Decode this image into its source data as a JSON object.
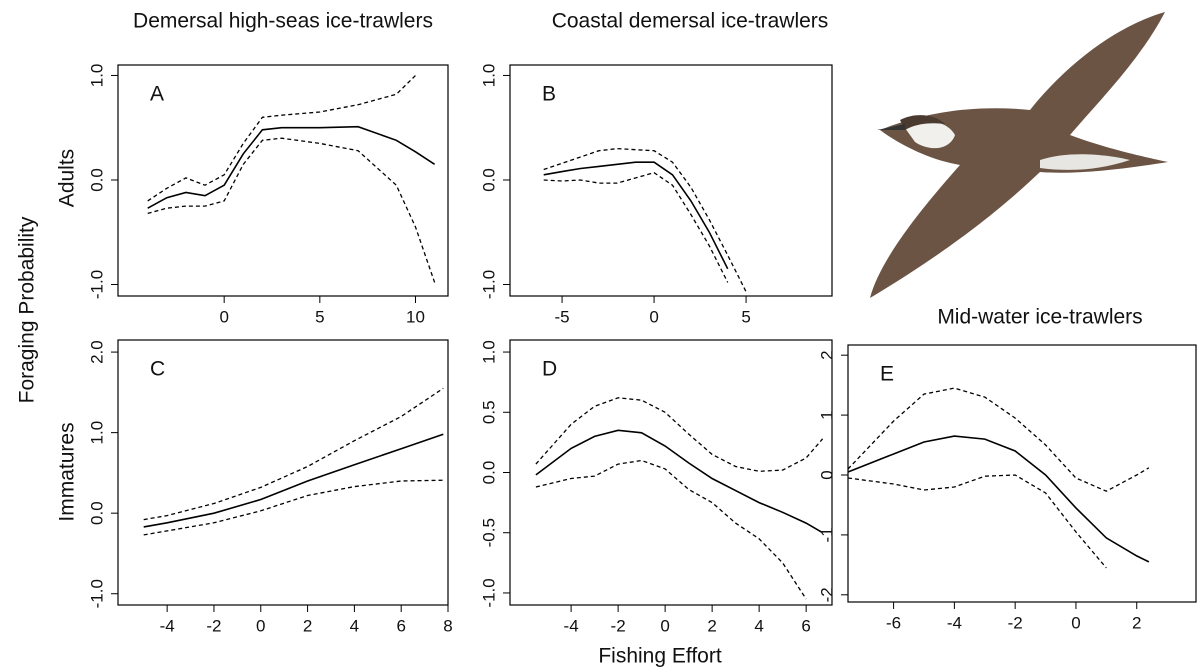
{
  "labels": {
    "y": "Foraging Probability",
    "row_top": "Adults",
    "row_bottom": "Immatures",
    "x": "Fishing Effort"
  },
  "titles": [
    "Demersal high-seas ice-trawlers",
    "Coastal demersal ice-trawlers",
    "Mid-water ice-trawlers"
  ],
  "chart_data": [
    {
      "type": "line",
      "title": "A",
      "x": [
        -4,
        -3,
        -2,
        -1,
        0,
        1,
        2,
        3,
        5,
        7,
        9,
        10,
        11
      ],
      "series": [
        {
          "color": "#000000",
          "dash": false,
          "values": [
            -0.27,
            -0.17,
            -0.12,
            -0.15,
            -0.05,
            0.25,
            0.48,
            0.5,
            0.5,
            0.51,
            0.38,
            0.27,
            0.15
          ]
        },
        {
          "color": "#000000",
          "dash": true,
          "values": [
            -0.2,
            -0.08,
            0.02,
            -0.05,
            0.05,
            0.35,
            0.6,
            0.62,
            0.65,
            0.72,
            0.82,
            1.0,
            null
          ]
        },
        {
          "color": "#000000",
          "dash": true,
          "values": [
            -0.32,
            -0.27,
            -0.25,
            -0.25,
            -0.2,
            0.15,
            0.38,
            0.4,
            0.35,
            0.28,
            -0.05,
            -0.45,
            -0.98
          ]
        }
      ],
      "xlim": [
        -5.55,
        11.7
      ],
      "ylim": [
        -1.11,
        1.1
      ],
      "xticks": [
        0,
        5,
        10
      ],
      "yticks": [
        {
          "value": 1,
          "label": "1.0"
        },
        {
          "value": 0,
          "label": "0.0"
        },
        {
          "value": -1,
          "label": "-1.0"
        }
      ]
    },
    {
      "type": "line",
      "title": "B",
      "x": [
        -6,
        -5,
        -4,
        -3,
        -2,
        -1,
        0,
        1,
        2,
        3,
        4,
        5
      ],
      "series": [
        {
          "color": "#000000",
          "dash": false,
          "values": [
            0.05,
            0.08,
            0.11,
            0.13,
            0.15,
            0.17,
            0.17,
            0.05,
            -0.2,
            -0.5,
            -0.85,
            null
          ]
        },
        {
          "color": "#000000",
          "dash": true,
          "values": [
            0.1,
            0.16,
            0.22,
            0.28,
            0.3,
            0.29,
            0.28,
            0.17,
            -0.07,
            -0.38,
            -0.72,
            -1.07
          ]
        },
        {
          "color": "#000000",
          "dash": true,
          "values": [
            0.0,
            -0.01,
            0.0,
            -0.03,
            -0.03,
            0.02,
            0.07,
            -0.05,
            -0.33,
            -0.63,
            -0.98,
            null
          ]
        }
      ],
      "xlim": [
        -7.83,
        9.67
      ],
      "ylim": [
        -1.11,
        1.1
      ],
      "xticks": [
        -5,
        0,
        5
      ],
      "yticks": [
        {
          "value": 1,
          "label": "1.0"
        },
        {
          "value": 0,
          "label": "0.0"
        },
        {
          "value": -1,
          "label": "-1.0"
        }
      ]
    },
    {
      "type": "line",
      "title": "C",
      "x": [
        -5,
        -4,
        -2,
        0,
        2,
        4,
        6,
        7.8
      ],
      "series": [
        {
          "color": "#000000",
          "dash": false,
          "values": [
            -0.17,
            -0.12,
            0.0,
            0.17,
            0.4,
            0.6,
            0.8,
            0.98
          ]
        },
        {
          "color": "#000000",
          "dash": true,
          "values": [
            -0.08,
            -0.03,
            0.12,
            0.32,
            0.58,
            0.9,
            1.2,
            1.55
          ]
        },
        {
          "color": "#000000",
          "dash": true,
          "values": [
            -0.27,
            -0.22,
            -0.12,
            0.03,
            0.22,
            0.33,
            0.4,
            0.41
          ]
        }
      ],
      "xlim": [
        -6.1,
        8.0
      ],
      "ylim": [
        -1.14,
        2.15
      ],
      "xticks": [
        -4,
        -2,
        0,
        2,
        4,
        6,
        8
      ],
      "yticks": [
        {
          "value": 2,
          "label": "2.0"
        },
        {
          "value": 1,
          "label": "1.0"
        },
        {
          "value": 0,
          "label": "0.0"
        },
        {
          "value": -1,
          "label": "-1.0"
        }
      ]
    },
    {
      "type": "line",
      "title": "D",
      "x": [
        -5.5,
        -4,
        -3,
        -2,
        -1,
        0,
        1,
        2,
        3,
        4,
        5,
        6,
        6.7
      ],
      "series": [
        {
          "color": "#000000",
          "dash": false,
          "values": [
            -0.02,
            0.2,
            0.3,
            0.35,
            0.33,
            0.22,
            0.08,
            -0.05,
            -0.15,
            -0.25,
            -0.33,
            -0.42,
            -0.5
          ]
        },
        {
          "color": "#000000",
          "dash": true,
          "values": [
            0.07,
            0.4,
            0.55,
            0.62,
            0.6,
            0.5,
            0.32,
            0.15,
            0.05,
            0.01,
            0.02,
            0.12,
            0.28
          ]
        },
        {
          "color": "#000000",
          "dash": true,
          "values": [
            -0.12,
            -0.05,
            -0.03,
            0.07,
            0.1,
            0.03,
            -0.14,
            -0.25,
            -0.42,
            -0.55,
            -0.75,
            -1.05,
            null
          ]
        }
      ],
      "xlim": [
        -6.6,
        7.1
      ],
      "ylim": [
        -1.1,
        1.1
      ],
      "xticks": [
        -4,
        -2,
        0,
        2,
        4,
        6
      ],
      "yticks": [
        {
          "value": 1,
          "label": "1.0"
        },
        {
          "value": 0.5,
          "label": "0.5"
        },
        {
          "value": 0,
          "label": "0.0"
        },
        {
          "value": -0.5,
          "label": "-0.5"
        },
        {
          "value": -1,
          "label": "-1.0"
        }
      ]
    },
    {
      "type": "line",
      "title": "E",
      "x": [
        -7.5,
        -6,
        -5,
        -4,
        -3,
        -2,
        -1,
        0,
        1,
        2,
        2.4
      ],
      "series": [
        {
          "color": "#000000",
          "dash": false,
          "values": [
            0.05,
            0.35,
            0.55,
            0.65,
            0.6,
            0.4,
            0.0,
            -0.55,
            -1.05,
            -1.35,
            -1.45
          ]
        },
        {
          "color": "#000000",
          "dash": true,
          "values": [
            0.1,
            0.9,
            1.35,
            1.45,
            1.3,
            0.95,
            0.5,
            -0.05,
            -0.27,
            0.0,
            0.12
          ]
        },
        {
          "color": "#000000",
          "dash": true,
          "values": [
            -0.05,
            -0.15,
            -0.25,
            -0.2,
            -0.02,
            0.0,
            -0.3,
            -0.95,
            -1.55,
            null,
            null
          ]
        }
      ],
      "xlim": [
        -7.5,
        3.95
      ],
      "ylim": [
        -2.12,
        2.17
      ],
      "xticks": [
        -6,
        -4,
        -2,
        0,
        2
      ],
      "yticks": [
        2,
        1,
        0,
        -1,
        -2
      ]
    }
  ]
}
